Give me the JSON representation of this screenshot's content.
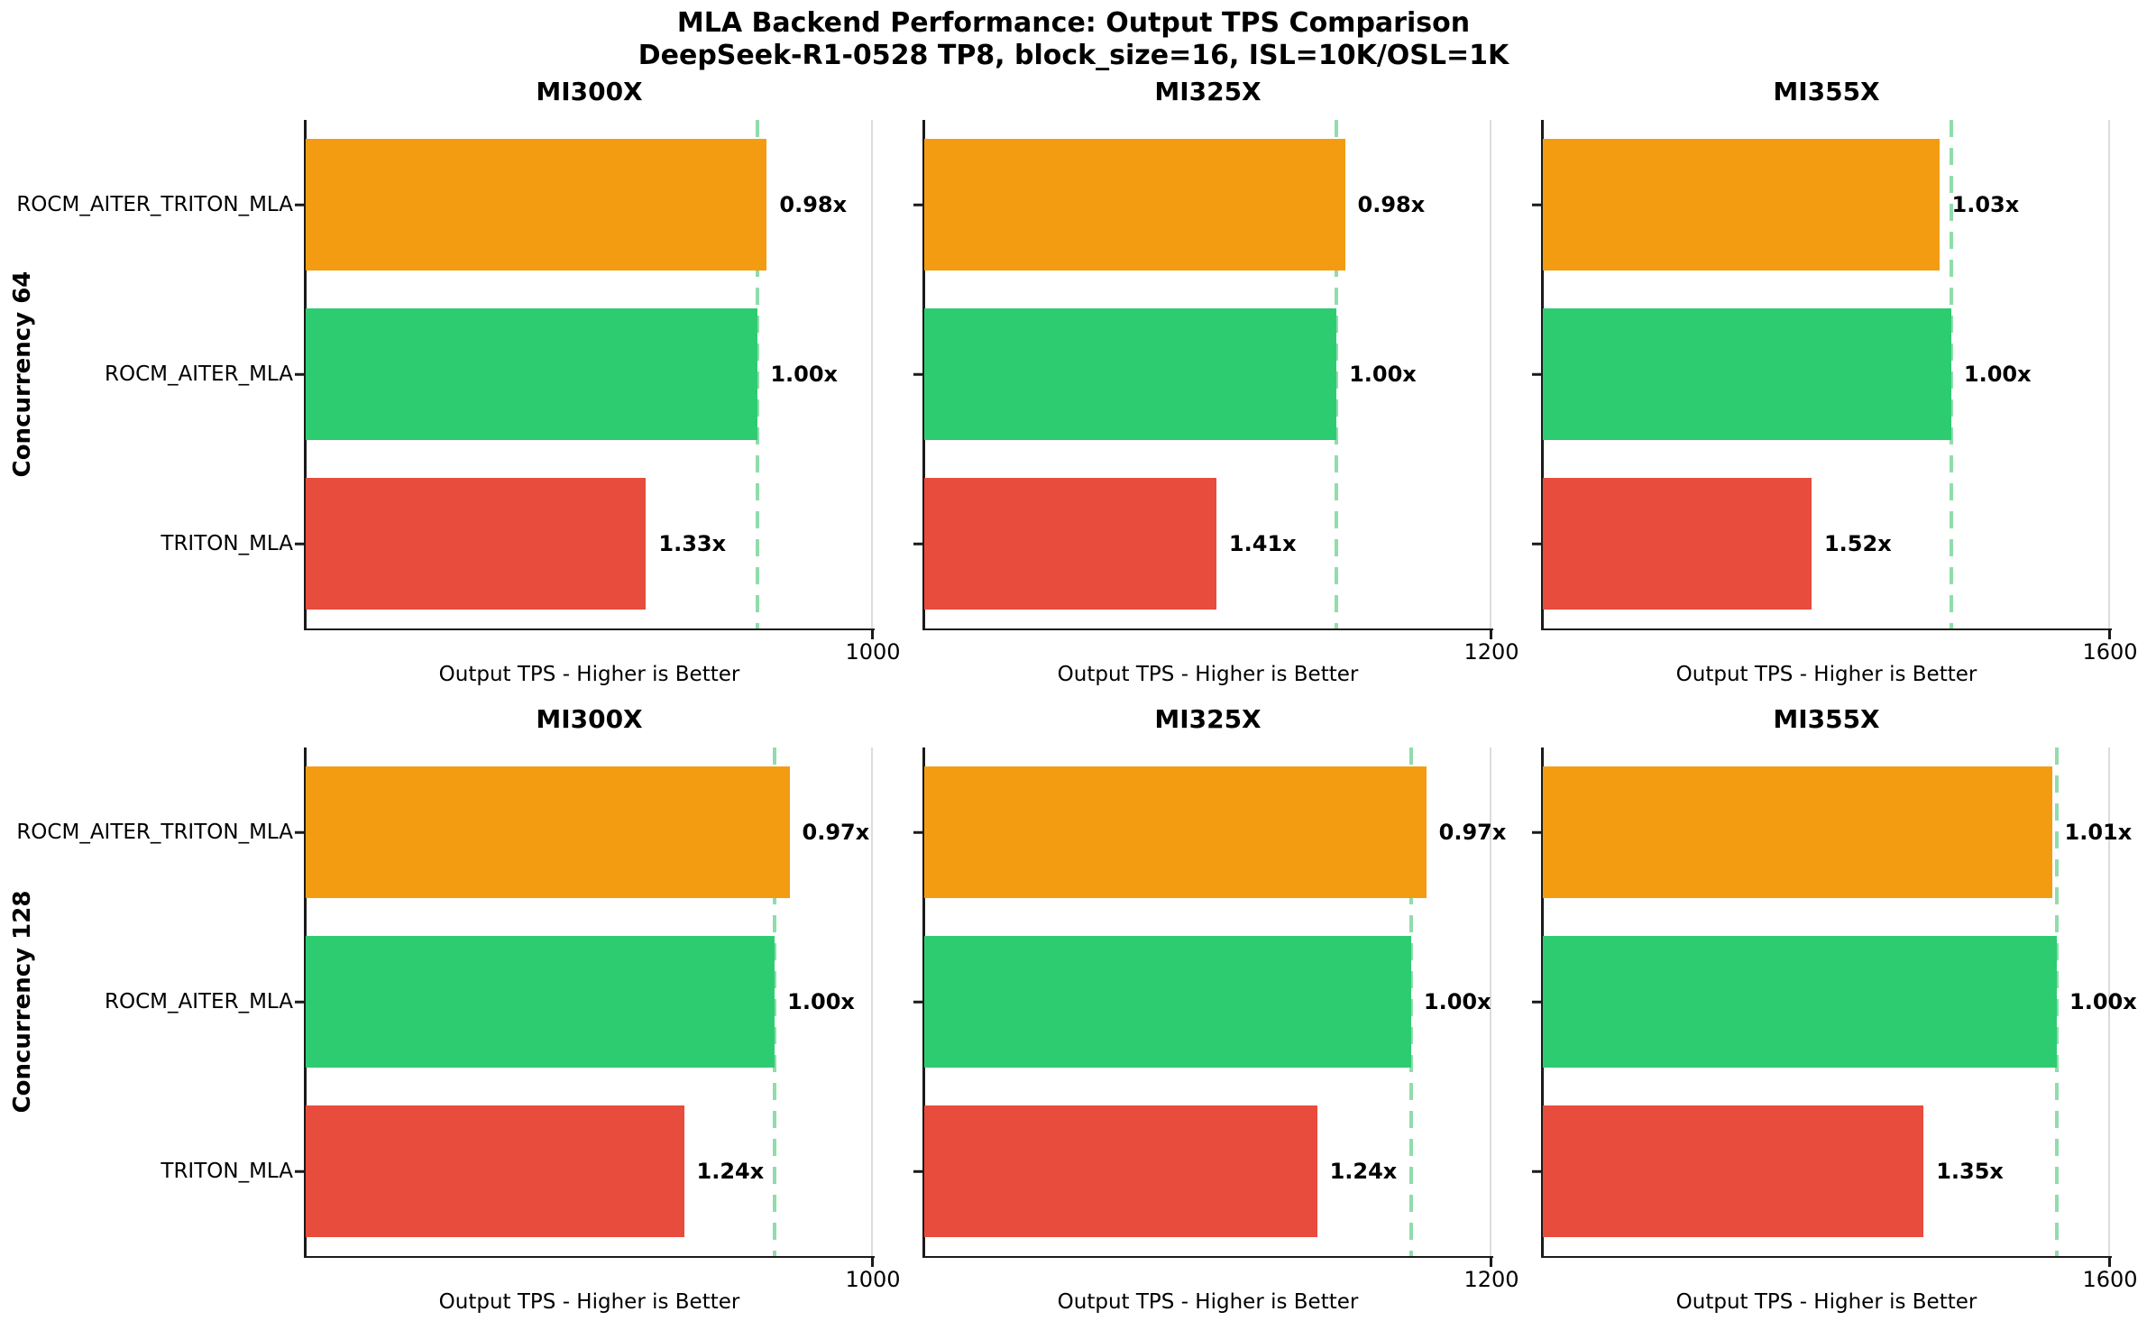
{
  "figure": {
    "title": "MLA Backend Performance: Output TPS Comparison",
    "subtitle": "DeepSeek-R1-0528 TP8, block_size=16, ISL=10K/OSL=1K"
  },
  "chart_data": {
    "type": "bar",
    "orientation": "horizontal",
    "title": "MLA Backend Performance: Output TPS Comparison",
    "subtitle": "DeepSeek-R1-0528 TP8, block_size=16, ISL=10K/OSL=1K",
    "grid": {
      "rows": 2,
      "cols": 3,
      "legend": "none",
      "gridlines": "off"
    },
    "row_labels": [
      "Concurrency 64",
      "Concurrency 128"
    ],
    "col_labels": [
      "MI300X",
      "MI325X",
      "MI355X"
    ],
    "categories": [
      "ROCM_AITER_TRITON_MLA",
      "ROCM_AITER_MLA",
      "TRITON_MLA"
    ],
    "bar_colors": {
      "ROCM_AITER_TRITON_MLA": "#F39C12",
      "ROCM_AITER_MLA": "#2ECC71",
      "TRITON_MLA": "#E74C3C"
    },
    "reference_line": {
      "meaning": "ROCM_AITER_MLA baseline (1.00x)",
      "style": "dashed",
      "color": "#90DCAC"
    },
    "xlabel": "Output TPS - Higher is Better",
    "value_label_note": "labels are speedup of ROCM_AITER_MLA relative to each backend",
    "subplots": [
      {
        "row": 0,
        "col": 0,
        "row_label": "Concurrency 64",
        "title": "MI300X",
        "xmin": 0,
        "xmax": 1000,
        "xtick_label": "1000",
        "show_ytick_labels": true,
        "ref_value": 797,
        "bars": [
          {
            "backend": "ROCM_AITER_TRITON_MLA",
            "value": 813,
            "ratio_label": "0.98x"
          },
          {
            "backend": "ROCM_AITER_MLA",
            "value": 797,
            "ratio_label": "1.00x"
          },
          {
            "backend": "TRITON_MLA",
            "value": 600,
            "ratio_label": "1.33x"
          }
        ]
      },
      {
        "row": 0,
        "col": 1,
        "row_label": "Concurrency 64",
        "title": "MI325X",
        "xmin": 0,
        "xmax": 1200,
        "xtick_label": "1200",
        "show_ytick_labels": false,
        "ref_value": 872,
        "bars": [
          {
            "backend": "ROCM_AITER_TRITON_MLA",
            "value": 890,
            "ratio_label": "0.98x"
          },
          {
            "backend": "ROCM_AITER_MLA",
            "value": 872,
            "ratio_label": "1.00x"
          },
          {
            "backend": "TRITON_MLA",
            "value": 618,
            "ratio_label": "1.41x"
          }
        ]
      },
      {
        "row": 0,
        "col": 2,
        "row_label": "Concurrency 64",
        "title": "MI355X",
        "xmin": 0,
        "xmax": 1600,
        "xtick_label": "1600",
        "show_ytick_labels": false,
        "ref_value": 1152,
        "bars": [
          {
            "backend": "ROCM_AITER_TRITON_MLA",
            "value": 1118,
            "ratio_label": "1.03x"
          },
          {
            "backend": "ROCM_AITER_MLA",
            "value": 1152,
            "ratio_label": "1.00x"
          },
          {
            "backend": "TRITON_MLA",
            "value": 758,
            "ratio_label": "1.52x"
          }
        ]
      },
      {
        "row": 1,
        "col": 0,
        "row_label": "Concurrency 128",
        "title": "MI300X",
        "xmin": 0,
        "xmax": 1000,
        "xtick_label": "1000",
        "show_ytick_labels": true,
        "ref_value": 827,
        "bars": [
          {
            "backend": "ROCM_AITER_TRITON_MLA",
            "value": 853,
            "ratio_label": "0.97x"
          },
          {
            "backend": "ROCM_AITER_MLA",
            "value": 827,
            "ratio_label": "1.00x"
          },
          {
            "backend": "TRITON_MLA",
            "value": 667,
            "ratio_label": "1.24x"
          }
        ]
      },
      {
        "row": 1,
        "col": 1,
        "row_label": "Concurrency 128",
        "title": "MI325X",
        "xmin": 0,
        "xmax": 1200,
        "xtick_label": "1200",
        "show_ytick_labels": false,
        "ref_value": 1030,
        "bars": [
          {
            "backend": "ROCM_AITER_TRITON_MLA",
            "value": 1062,
            "ratio_label": "0.97x"
          },
          {
            "backend": "ROCM_AITER_MLA",
            "value": 1030,
            "ratio_label": "1.00x"
          },
          {
            "backend": "TRITON_MLA",
            "value": 831,
            "ratio_label": "1.24x"
          }
        ]
      },
      {
        "row": 1,
        "col": 2,
        "row_label": "Concurrency 128",
        "title": "MI355X",
        "xmin": 0,
        "xmax": 1600,
        "xtick_label": "1600",
        "show_ytick_labels": false,
        "ref_value": 1450,
        "bars": [
          {
            "backend": "ROCM_AITER_TRITON_MLA",
            "value": 1436,
            "ratio_label": "1.01x"
          },
          {
            "backend": "ROCM_AITER_MLA",
            "value": 1450,
            "ratio_label": "1.00x"
          },
          {
            "backend": "TRITON_MLA",
            "value": 1074,
            "ratio_label": "1.35x"
          }
        ]
      }
    ]
  }
}
